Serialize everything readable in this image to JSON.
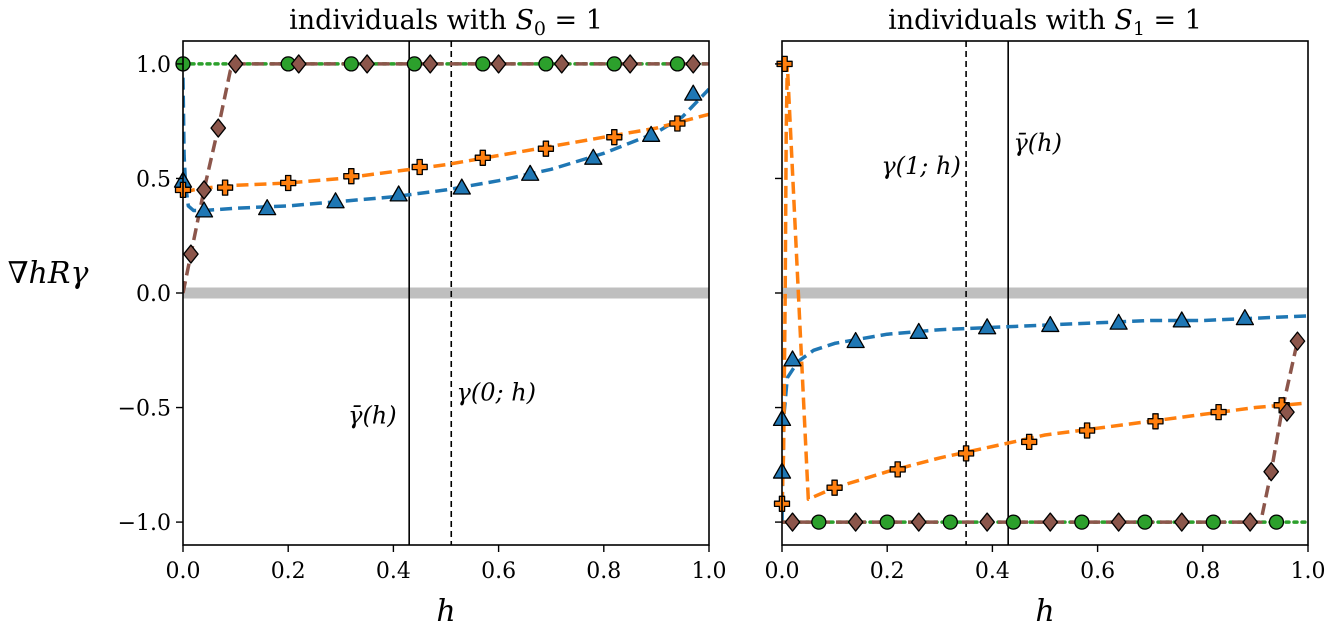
{
  "colors": {
    "blue": "#1f77b4",
    "orange": "#ff7f0e",
    "green": "#2ca02c",
    "brown": "#8c564b",
    "zero_line": "#bfbfbf"
  },
  "ylabel": "∇hRγ",
  "chart_data": [
    {
      "type": "line",
      "title": "individuals with S0 = 1",
      "xlabel": "h",
      "xlim": [
        0,
        1
      ],
      "ylim": [
        -1.1,
        1.1
      ],
      "xticks": [
        0.0,
        0.2,
        0.4,
        0.6,
        0.8,
        1.0
      ],
      "xtick_labels": [
        "0.0",
        "0.2",
        "0.4",
        "0.6",
        "0.8",
        "1.0"
      ],
      "yticks": [
        -1.0,
        -0.5,
        0.0,
        0.5,
        1.0
      ],
      "ytick_labels": [
        "−1.0",
        "−0.5",
        "0.0",
        "0.5",
        "1.0"
      ],
      "vlines": [
        {
          "x": 0.43,
          "style": "solid",
          "label": "γ̄(h)",
          "label_x": 0.36,
          "label_y": -0.57,
          "anchor": "middle"
        },
        {
          "x": 0.51,
          "style": "dashed",
          "label": "γ(0; h)",
          "label_x": 0.52,
          "label_y": -0.47,
          "anchor": "start"
        }
      ],
      "series": [
        {
          "name": "blue",
          "marker": "triangle",
          "color": "blue",
          "line": "dashed",
          "x": [
            0.0,
            0.002,
            0.005,
            0.01,
            0.02,
            0.04,
            0.1,
            0.2,
            0.3,
            0.4,
            0.5,
            0.6,
            0.7,
            0.8,
            0.9,
            0.95,
            1.0
          ],
          "y": [
            0.94,
            0.6,
            0.47,
            0.38,
            0.36,
            0.36,
            0.37,
            0.38,
            0.4,
            0.42,
            0.45,
            0.49,
            0.54,
            0.61,
            0.7,
            0.77,
            0.89
          ],
          "markers_x": [
            0.0,
            0.04,
            0.16,
            0.29,
            0.41,
            0.53,
            0.66,
            0.78,
            0.89,
            0.97
          ],
          "markers_y": [
            0.49,
            0.36,
            0.37,
            0.4,
            0.43,
            0.46,
            0.52,
            0.59,
            0.69,
            0.87
          ]
        },
        {
          "name": "orange",
          "marker": "plus",
          "color": "orange",
          "line": "dashed",
          "x": [
            0.0,
            0.02,
            0.05,
            0.1,
            0.2,
            0.3,
            0.4,
            0.5,
            0.6,
            0.7,
            0.8,
            0.9,
            1.0
          ],
          "y": [
            0.44,
            0.45,
            0.46,
            0.47,
            0.48,
            0.5,
            0.53,
            0.56,
            0.6,
            0.64,
            0.68,
            0.72,
            0.78
          ],
          "markers_x": [
            0.0,
            0.08,
            0.2,
            0.32,
            0.45,
            0.57,
            0.69,
            0.82,
            0.94
          ],
          "markers_y": [
            0.45,
            0.46,
            0.48,
            0.51,
            0.55,
            0.59,
            0.63,
            0.68,
            0.74
          ]
        },
        {
          "name": "green",
          "marker": "circle",
          "color": "green",
          "line": "dotted",
          "x": [
            0.0,
            1.0
          ],
          "y": [
            1.0,
            1.0
          ],
          "markers_x": [
            0.0,
            0.2,
            0.32,
            0.44,
            0.57,
            0.69,
            0.82,
            0.94
          ],
          "markers_y": [
            1.0,
            1.0,
            1.0,
            1.0,
            1.0,
            1.0,
            1.0,
            1.0
          ]
        },
        {
          "name": "brown",
          "marker": "diamond",
          "color": "brown",
          "line": "dashed",
          "x": [
            0.0,
            0.015,
            0.04,
            0.067,
            0.09,
            0.1,
            1.0
          ],
          "y": [
            0.0,
            0.17,
            0.45,
            0.72,
            0.97,
            1.0,
            1.0
          ],
          "markers_x": [
            0.015,
            0.04,
            0.067,
            0.1,
            0.22,
            0.35,
            0.47,
            0.6,
            0.72,
            0.85,
            0.97
          ],
          "markers_y": [
            0.17,
            0.45,
            0.72,
            1.0,
            1.0,
            1.0,
            1.0,
            1.0,
            1.0,
            1.0,
            1.0
          ]
        }
      ]
    },
    {
      "type": "line",
      "title": "individuals with S1 = 1",
      "xlabel": "h",
      "xlim": [
        0,
        1
      ],
      "ylim": [
        -1.1,
        1.1
      ],
      "xticks": [
        0.0,
        0.2,
        0.4,
        0.6,
        0.8,
        1.0
      ],
      "xtick_labels": [
        "0.0",
        "0.2",
        "0.4",
        "0.6",
        "0.8",
        "1.0"
      ],
      "yticks": [
        -1.0,
        -0.5,
        0.0,
        0.5,
        1.0
      ],
      "ytick_labels": [],
      "vlines": [
        {
          "x": 0.35,
          "style": "dashed",
          "label": "γ(1; h)",
          "label_x": 0.34,
          "label_y": 0.52,
          "anchor": "end"
        },
        {
          "x": 0.43,
          "style": "solid",
          "label": "γ̄(h)",
          "label_x": 0.44,
          "label_y": 0.62,
          "anchor": "start"
        }
      ],
      "series": [
        {
          "name": "blue",
          "marker": "triangle",
          "color": "blue",
          "line": "dashed",
          "x": [
            0.0,
            0.003,
            0.01,
            0.03,
            0.06,
            0.1,
            0.2,
            0.3,
            0.4,
            0.5,
            0.6,
            0.7,
            0.8,
            0.9,
            1.0
          ],
          "y": [
            -1.0,
            -0.55,
            -0.37,
            -0.3,
            -0.25,
            -0.22,
            -0.18,
            -0.16,
            -0.15,
            -0.14,
            -0.13,
            -0.12,
            -0.12,
            -0.11,
            -0.1
          ],
          "markers_x": [
            0.0,
            0.0,
            0.02,
            0.14,
            0.26,
            0.39,
            0.51,
            0.64,
            0.76,
            0.88
          ],
          "markers_y": [
            -0.78,
            -0.55,
            -0.29,
            -0.21,
            -0.17,
            -0.15,
            -0.14,
            -0.13,
            -0.12,
            -0.11
          ]
        },
        {
          "name": "orange",
          "marker": "plus",
          "color": "orange",
          "line": "dashed",
          "x": [
            0.0,
            0.003,
            0.006,
            0.008,
            0.01,
            0.05,
            0.1,
            0.2,
            0.3,
            0.4,
            0.5,
            0.6,
            0.7,
            0.8,
            0.9,
            1.0
          ],
          "y": [
            -0.92,
            -0.7,
            0.0,
            0.7,
            1.0,
            -0.9,
            -0.85,
            -0.78,
            -0.72,
            -0.67,
            -0.62,
            -0.59,
            -0.56,
            -0.53,
            -0.5,
            -0.48
          ],
          "markers_x": [
            0.005,
            0.0,
            0.1,
            0.22,
            0.35,
            0.47,
            0.58,
            0.71,
            0.83,
            0.95
          ],
          "markers_y": [
            1.0,
            -0.92,
            -0.85,
            -0.77,
            -0.7,
            -0.65,
            -0.6,
            -0.56,
            -0.52,
            -0.49
          ]
        },
        {
          "name": "green",
          "marker": "circle",
          "color": "green",
          "line": "dotted",
          "x": [
            0.0,
            1.0
          ],
          "y": [
            -1.0,
            -1.0
          ],
          "markers_x": [
            0.07,
            0.2,
            0.32,
            0.44,
            0.57,
            0.69,
            0.82,
            0.94
          ],
          "markers_y": [
            -1.0,
            -1.0,
            -1.0,
            -1.0,
            -1.0,
            -1.0,
            -1.0,
            -1.0
          ]
        },
        {
          "name": "brown",
          "marker": "diamond",
          "color": "brown",
          "line": "dashed",
          "x": [
            0.0,
            0.91,
            0.93,
            0.95,
            0.98
          ],
          "y": [
            -1.0,
            -1.0,
            -0.78,
            -0.52,
            -0.21
          ],
          "markers_x": [
            0.02,
            0.14,
            0.26,
            0.39,
            0.51,
            0.64,
            0.76,
            0.89,
            0.93,
            0.96,
            0.98
          ],
          "markers_y": [
            -1.0,
            -1.0,
            -1.0,
            -1.0,
            -1.0,
            -1.0,
            -1.0,
            -1.0,
            -0.78,
            -0.52,
            -0.21
          ]
        }
      ]
    }
  ]
}
